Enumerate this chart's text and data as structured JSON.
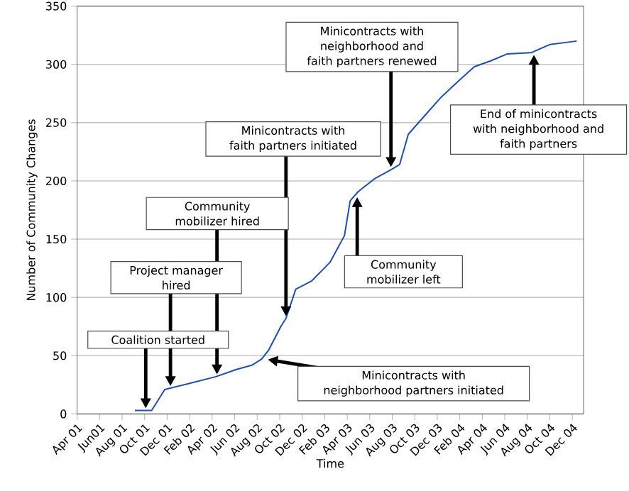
{
  "chart_data": {
    "type": "line",
    "xlabel": "Time",
    "ylabel": "Number of Community Changes",
    "color": "#1f4fae",
    "grid": "y",
    "x": [
      "2001-09-05",
      "2001-10-20",
      "2001-11-25",
      "2002-01-28",
      "2002-04-11",
      "2002-06-04",
      "2002-07-18",
      "2002-08-13",
      "2002-09-02",
      "2002-10-04",
      "2002-10-18",
      "2002-11-14",
      "2002-12-26",
      "2003-02-15",
      "2003-03-24",
      "2003-04-09",
      "2003-05-01",
      "2003-06-15",
      "2003-07-30",
      "2003-08-21",
      "2003-09-14",
      "2003-10-28",
      "2003-12-12",
      "2004-02-02",
      "2004-03-10",
      "2004-04-24",
      "2004-06-08",
      "2004-08-11",
      "2004-10-01",
      "2004-12-13"
    ],
    "values": [
      3,
      3,
      21,
      26,
      32,
      38,
      42,
      47,
      55,
      75,
      82,
      107,
      114,
      130,
      153,
      183,
      191,
      202,
      210,
      214,
      240,
      256,
      272,
      287,
      298,
      303,
      309,
      310,
      317,
      320
    ],
    "xlim": [
      "2001-04",
      "2005-01"
    ],
    "ylim": [
      0,
      350
    ],
    "yticks": [
      0,
      50,
      100,
      150,
      200,
      250,
      300,
      350
    ],
    "xticks": [
      {
        "value": "2001-04",
        "label": "Apr 01"
      },
      {
        "value": "2001-06",
        "label": "Jun01"
      },
      {
        "value": "2001-08",
        "label": "Aug 01"
      },
      {
        "value": "2001-10",
        "label": "Oct 01"
      },
      {
        "value": "2001-12",
        "label": "Dec 01"
      },
      {
        "value": "2002-02",
        "label": "Feb 02"
      },
      {
        "value": "2002-04",
        "label": "Apr 02"
      },
      {
        "value": "2002-06",
        "label": "Jun 02"
      },
      {
        "value": "2002-08",
        "label": "Aug 02"
      },
      {
        "value": "2002-10",
        "label": "Oct 02"
      },
      {
        "value": "2002-12",
        "label": "Dec 02"
      },
      {
        "value": "2003-02",
        "label": "Feb 03"
      },
      {
        "value": "2003-04",
        "label": "Apr 03"
      },
      {
        "value": "2003-06",
        "label": "Jun 03"
      },
      {
        "value": "2003-08",
        "label": "Aug 03"
      },
      {
        "value": "2003-10",
        "label": "Oct 03"
      },
      {
        "value": "2003-12",
        "label": "Dec 03"
      },
      {
        "value": "2004-02",
        "label": "Feb 04"
      },
      {
        "value": "2004-04",
        "label": "Apr 04"
      },
      {
        "value": "2004-06",
        "label": "Jun 04"
      },
      {
        "value": "2004-08",
        "label": "Aug 04"
      },
      {
        "value": "2004-10",
        "label": "Oct 04"
      },
      {
        "value": "2004-12",
        "label": "Dec 04"
      }
    ],
    "annotations": [
      {
        "text": "Coalition started",
        "x": "2001-10-04",
        "y": 3
      },
      {
        "text": "Project manager hired",
        "x": "2001-12-10",
        "y": 22
      },
      {
        "text": "Community mobilizer hired",
        "x": "2002-04-14",
        "y": 32
      },
      {
        "text": "Minicontracts with faith partners initiated",
        "x": "2002-10-18",
        "y": 82
      },
      {
        "text": "Minicontracts with neighborhood partners initiated",
        "x": "2002-08-24",
        "y": 47
      },
      {
        "text": "Community mobilizer left",
        "x": "2003-04-28",
        "y": 188
      },
      {
        "text": "Minicontracts with neighborhood and faith partners renewed",
        "x": "2003-07-28",
        "y": 210
      },
      {
        "text": "End of minicontracts with neighborhood and faith partners",
        "x": "2004-08-19",
        "y": 310
      }
    ]
  }
}
